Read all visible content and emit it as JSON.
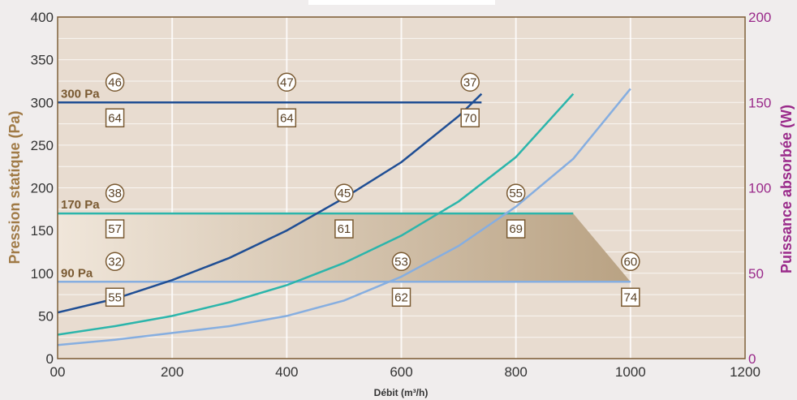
{
  "chart_data": {
    "type": "line",
    "title": "",
    "xlabel": "Débit (m³/h)",
    "ylabel": "Pression statique (Pa)",
    "y2label": "Puissance absorbée (W)",
    "xlim": [
      0,
      1200
    ],
    "ylim": [
      0,
      400
    ],
    "y2lim": [
      0,
      200
    ],
    "x_ticks": [
      "00",
      "200",
      "400",
      "600",
      "800",
      "1000",
      "1200"
    ],
    "y_ticks": [
      "0",
      "50",
      "100",
      "150",
      "200",
      "250",
      "300",
      "350",
      "400"
    ],
    "y2_ticks": [
      "0",
      "50",
      "100",
      "150",
      "200"
    ],
    "grid": true,
    "colors": {
      "frame": "#7a5a32",
      "left_axis": "#a07a46",
      "right_axis": "#9a2a8a",
      "plot_bg": "#e8dcd0",
      "shade_light": "#f0e6da",
      "shade_dark": "#b9a283",
      "series_300": "#1f4e94",
      "series_170": "#2bb5ab",
      "series_90": "#86aee0"
    },
    "operating_area": {
      "points": [
        [
          0,
          170
        ],
        [
          900,
          170
        ],
        [
          1000,
          90
        ],
        [
          0,
          90
        ]
      ]
    },
    "series": [
      {
        "name": "300 Pa",
        "line_label": "300 Pa",
        "color_key": "series_300",
        "pressure_level": 300,
        "pressure_x_range": [
          0,
          740
        ],
        "power_curve": {
          "x": [
            0,
            100,
            200,
            300,
            400,
            500,
            600,
            700,
            740
          ],
          "y": [
            27,
            35,
            46,
            59,
            75,
            94,
            115,
            142,
            155
          ]
        },
        "markers": [
          {
            "x": 100,
            "circle": "46",
            "square": "64"
          },
          {
            "x": 400,
            "circle": "47",
            "square": "64"
          },
          {
            "x": 720,
            "circle": "37",
            "square": "70"
          }
        ]
      },
      {
        "name": "170 Pa",
        "line_label": "170 Pa",
        "color_key": "series_170",
        "pressure_level": 170,
        "pressure_x_range": [
          0,
          900
        ],
        "power_curve": {
          "x": [
            0,
            100,
            200,
            300,
            400,
            500,
            600,
            700,
            800,
            900
          ],
          "y": [
            14,
            19,
            25,
            33,
            43,
            56,
            72,
            92,
            118,
            155
          ]
        },
        "markers": [
          {
            "x": 100,
            "circle": "38",
            "square": "57"
          },
          {
            "x": 500,
            "circle": "45",
            "square": "61"
          },
          {
            "x": 800,
            "circle": "55",
            "square": "69"
          }
        ]
      },
      {
        "name": "90 Pa",
        "line_label": "90 Pa",
        "color_key": "series_90",
        "pressure_level": 90,
        "pressure_x_range": [
          0,
          1000
        ],
        "power_curve": {
          "x": [
            0,
            100,
            200,
            300,
            400,
            500,
            600,
            700,
            800,
            900,
            1000
          ],
          "y": [
            8,
            11,
            15,
            19,
            25,
            34,
            48,
            66,
            89,
            117,
            158
          ]
        },
        "markers": [
          {
            "x": 100,
            "circle": "32",
            "square": "55"
          },
          {
            "x": 600,
            "circle": "53",
            "square": "62"
          },
          {
            "x": 1000,
            "circle": "60",
            "square": "74"
          }
        ]
      }
    ]
  }
}
